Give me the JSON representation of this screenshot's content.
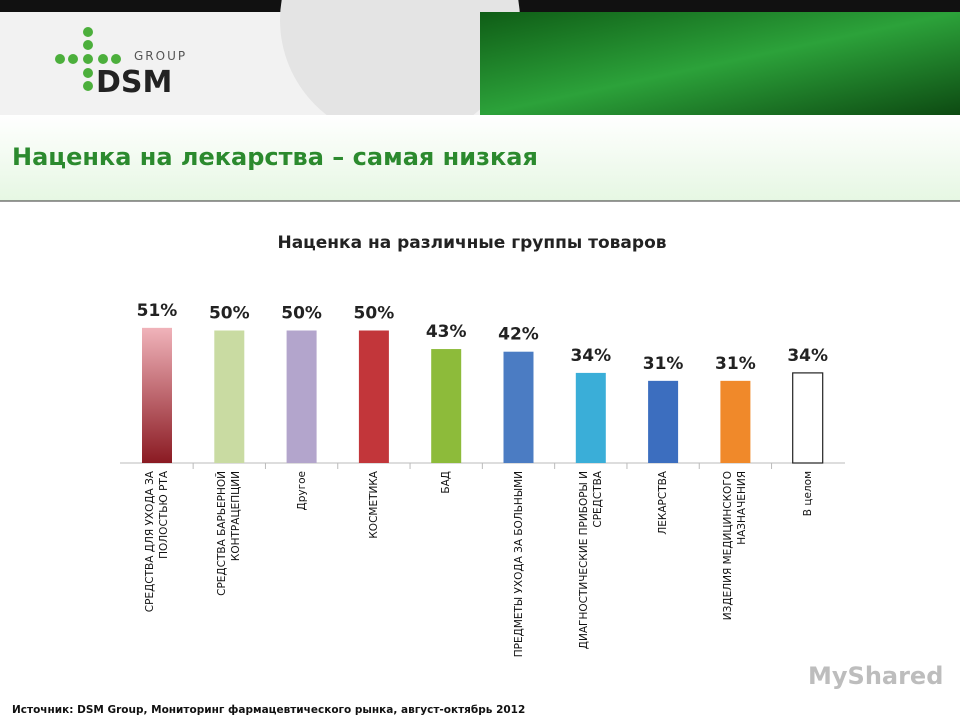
{
  "logo": {
    "brand": "DSM",
    "group": "GROUP"
  },
  "slide_title": "Наценка на лекарства – самая низкая",
  "chart_data": {
    "type": "bar",
    "title": "Наценка на различные группы товаров",
    "categories": [
      "СРЕДСТВА ДЛЯ УХОДА ЗА ПОЛОСТЬЮ РТА",
      "СРЕДСТВА БАРЬЕРНОЙ КОНТРАЦЕПЦИИ",
      "Другое",
      "КОСМЕТИКА",
      "БАД",
      "ПРЕДМЕТЫ УХОДА ЗА БОЛЬНЫМИ",
      "ДИАГНОСТИЧЕСКИЕ ПРИБОРЫ И СРЕДСТВА",
      "ЛЕКАРСТВА",
      "ИЗДЕЛИЯ МЕДИЦИНСКОГО НАЗНАЧЕНИЯ",
      "В целом"
    ],
    "values": [
      51,
      50,
      50,
      50,
      43,
      42,
      34,
      31,
      31,
      34
    ],
    "value_labels": [
      "51%",
      "50%",
      "50%",
      "50%",
      "43%",
      "42%",
      "34%",
      "31%",
      "31%",
      "34%"
    ],
    "colors": [
      "#d9737f",
      "#c9dba2",
      "#b3a5cc",
      "#c2363a",
      "#8dbb3a",
      "#4b7cc3",
      "#3aaed8",
      "#3c6ebf",
      "#f0892a",
      "#ffffff"
    ]
  },
  "source": "Источник: DSM Group, Мониторинг фармацевтического рынка, август-октябрь 2012",
  "watermark": "MyShared"
}
